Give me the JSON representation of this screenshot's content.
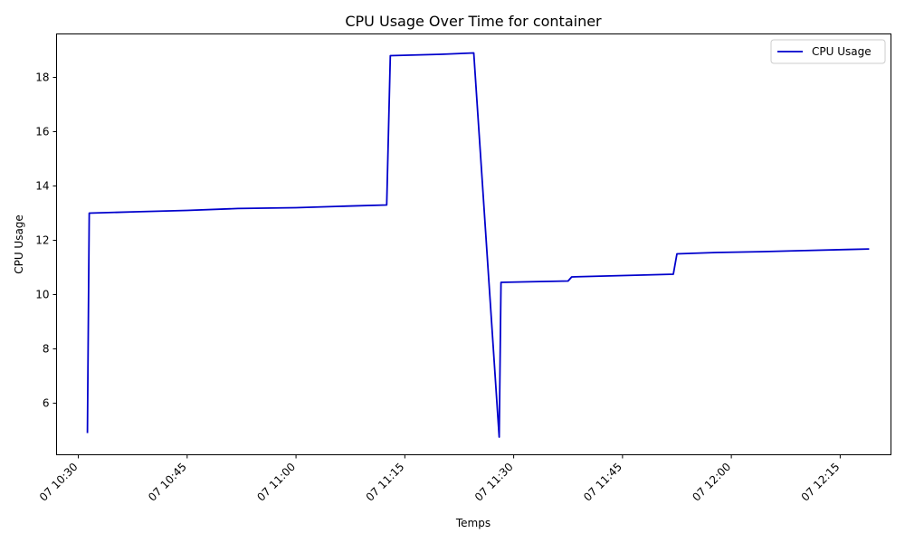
{
  "chart_data": {
    "type": "line",
    "title": "CPU Usage Over Time for container",
    "xlabel": "Temps",
    "ylabel": "CPU Usage",
    "ylim": [
      4.1,
      19.6
    ],
    "xlim": [
      "2023-01-07T10:27:00",
      "2023-01-07T12:22:00"
    ],
    "x_ticks": [
      {
        "t": "10:30",
        "label": "07 10:30"
      },
      {
        "t": "10:45",
        "label": "07 10:45"
      },
      {
        "t": "11:00",
        "label": "07 11:00"
      },
      {
        "t": "11:15",
        "label": "07 11:15"
      },
      {
        "t": "11:30",
        "label": "07 11:30"
      },
      {
        "t": "11:45",
        "label": "07 11:45"
      },
      {
        "t": "12:00",
        "label": "07 12:00"
      },
      {
        "t": "12:15",
        "label": "07 12:15"
      }
    ],
    "y_ticks": [
      6,
      8,
      10,
      12,
      14,
      16,
      18
    ],
    "legend": {
      "position": "top-right",
      "entries": [
        "CPU Usage"
      ]
    },
    "grid": false,
    "series": [
      {
        "name": "CPU Usage",
        "color": "#0000cc",
        "points": [
          [
            "10:31:15",
            4.9
          ],
          [
            "10:31:30",
            13.0
          ],
          [
            "10:38:00",
            13.05
          ],
          [
            "10:45:00",
            13.1
          ],
          [
            "10:52:00",
            13.17
          ],
          [
            "11:00:00",
            13.2
          ],
          [
            "11:06:00",
            13.25
          ],
          [
            "11:12:30",
            13.3
          ],
          [
            "11:13:00",
            18.8
          ],
          [
            "11:20:00",
            18.85
          ],
          [
            "11:24:30",
            18.9
          ],
          [
            "11:28:00",
            4.75
          ],
          [
            "11:28:15",
            10.45
          ],
          [
            "11:32:00",
            10.47
          ],
          [
            "11:37:30",
            10.5
          ],
          [
            "11:38:00",
            10.65
          ],
          [
            "11:42:00",
            10.68
          ],
          [
            "11:48:00",
            10.72
          ],
          [
            "11:52:00",
            10.75
          ],
          [
            "11:52:30",
            11.5
          ],
          [
            "11:58:00",
            11.55
          ],
          [
            "12:04:00",
            11.58
          ],
          [
            "12:10:00",
            11.62
          ],
          [
            "12:16:00",
            11.66
          ],
          [
            "12:19:00",
            11.68
          ]
        ]
      }
    ]
  }
}
